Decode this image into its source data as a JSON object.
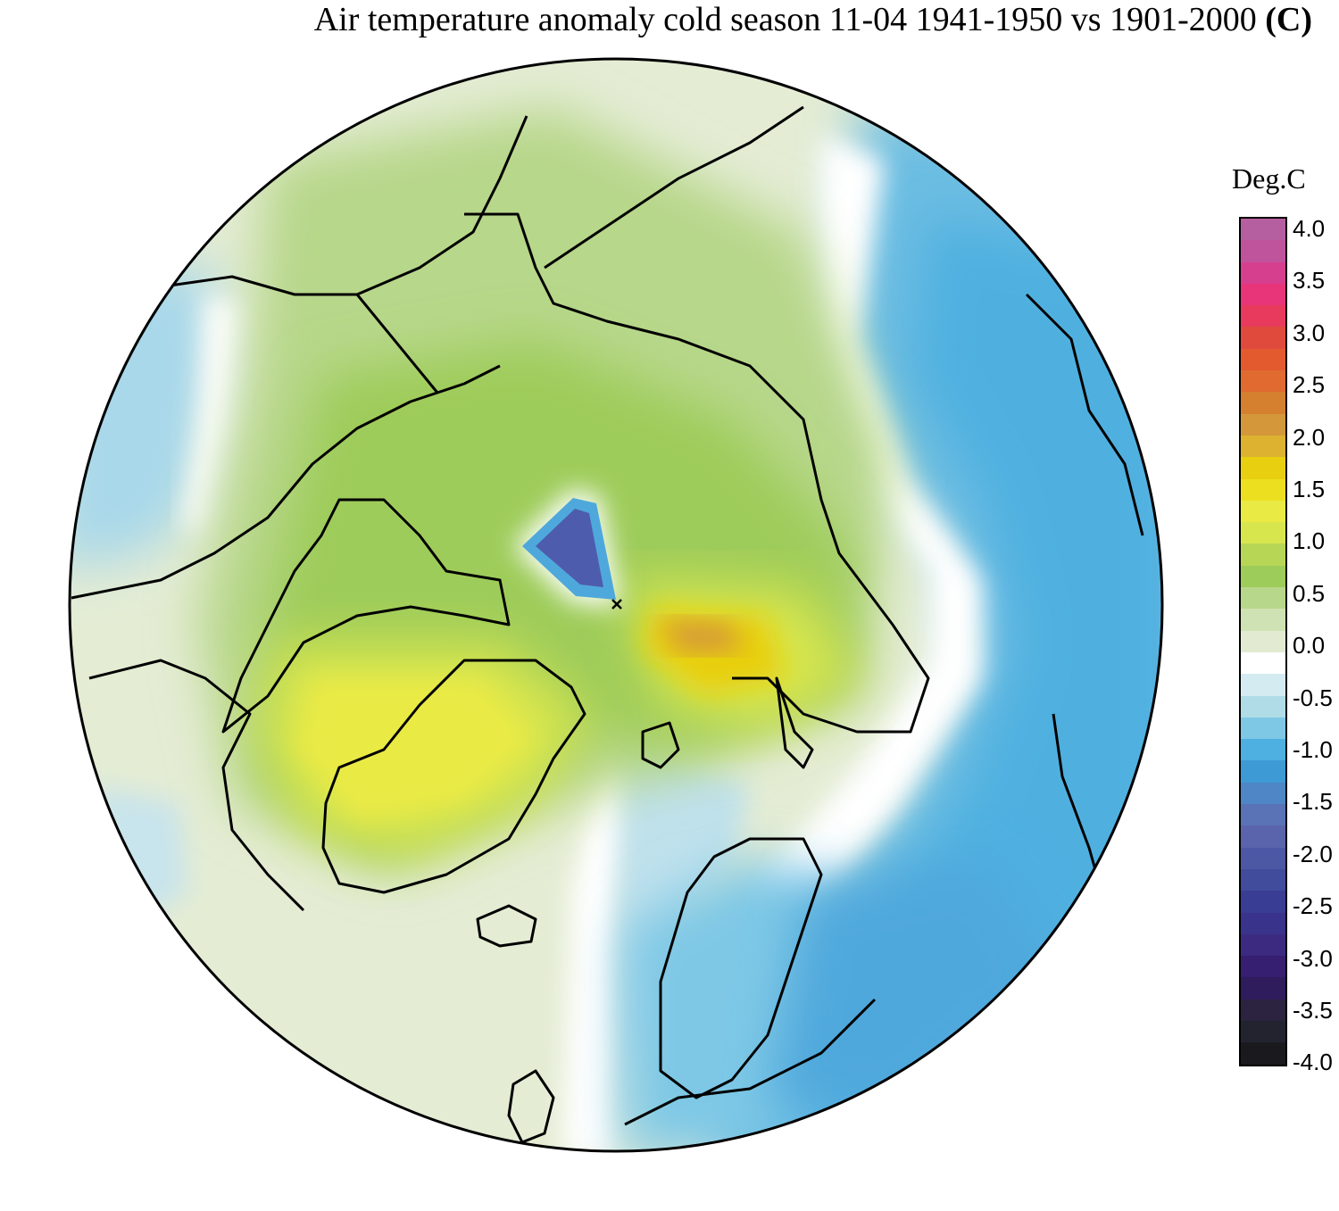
{
  "title": {
    "text": "Air temperature anomaly cold season 11-04 1941-1950 vs 1901-2000",
    "unit": "(C)"
  },
  "legend": {
    "title": "Deg.C",
    "ticks": [
      "4.0",
      "3.5",
      "3.0",
      "2.5",
      "2.0",
      "1.5",
      "1.0",
      "0.5",
      "0.0",
      "-0.5",
      "-1.0",
      "-1.5",
      "-2.0",
      "-2.5",
      "-3.0",
      "-3.5",
      "-4.0"
    ],
    "colors": [
      "#b65fa0",
      "#c0549c",
      "#d63f8e",
      "#e8357a",
      "#e83a5c",
      "#e04a3c",
      "#e25a2e",
      "#e06a30",
      "#d4802f",
      "#d4983a",
      "#dcb230",
      "#e8cf10",
      "#ecdf20",
      "#eaea44",
      "#d8e64e",
      "#b8d655",
      "#9ecc5a",
      "#b7d78a",
      "#cfe2b4",
      "#e2ebd2",
      "#ffffff",
      "#d4ebf1",
      "#b0dce8",
      "#7ec8e6",
      "#4db0e0",
      "#3e9ad4",
      "#4e86c6",
      "#5a72b6",
      "#5a64ac",
      "#4c58a4",
      "#414c9c",
      "#3a3d94",
      "#3a338c",
      "#3c2a80",
      "#361f70",
      "#2e1c5c",
      "#2b2340",
      "#232330",
      "#1a1a1e"
    ]
  },
  "map": {
    "projection": "north-polar-stereographic",
    "field": "air-temperature-anomaly"
  }
}
